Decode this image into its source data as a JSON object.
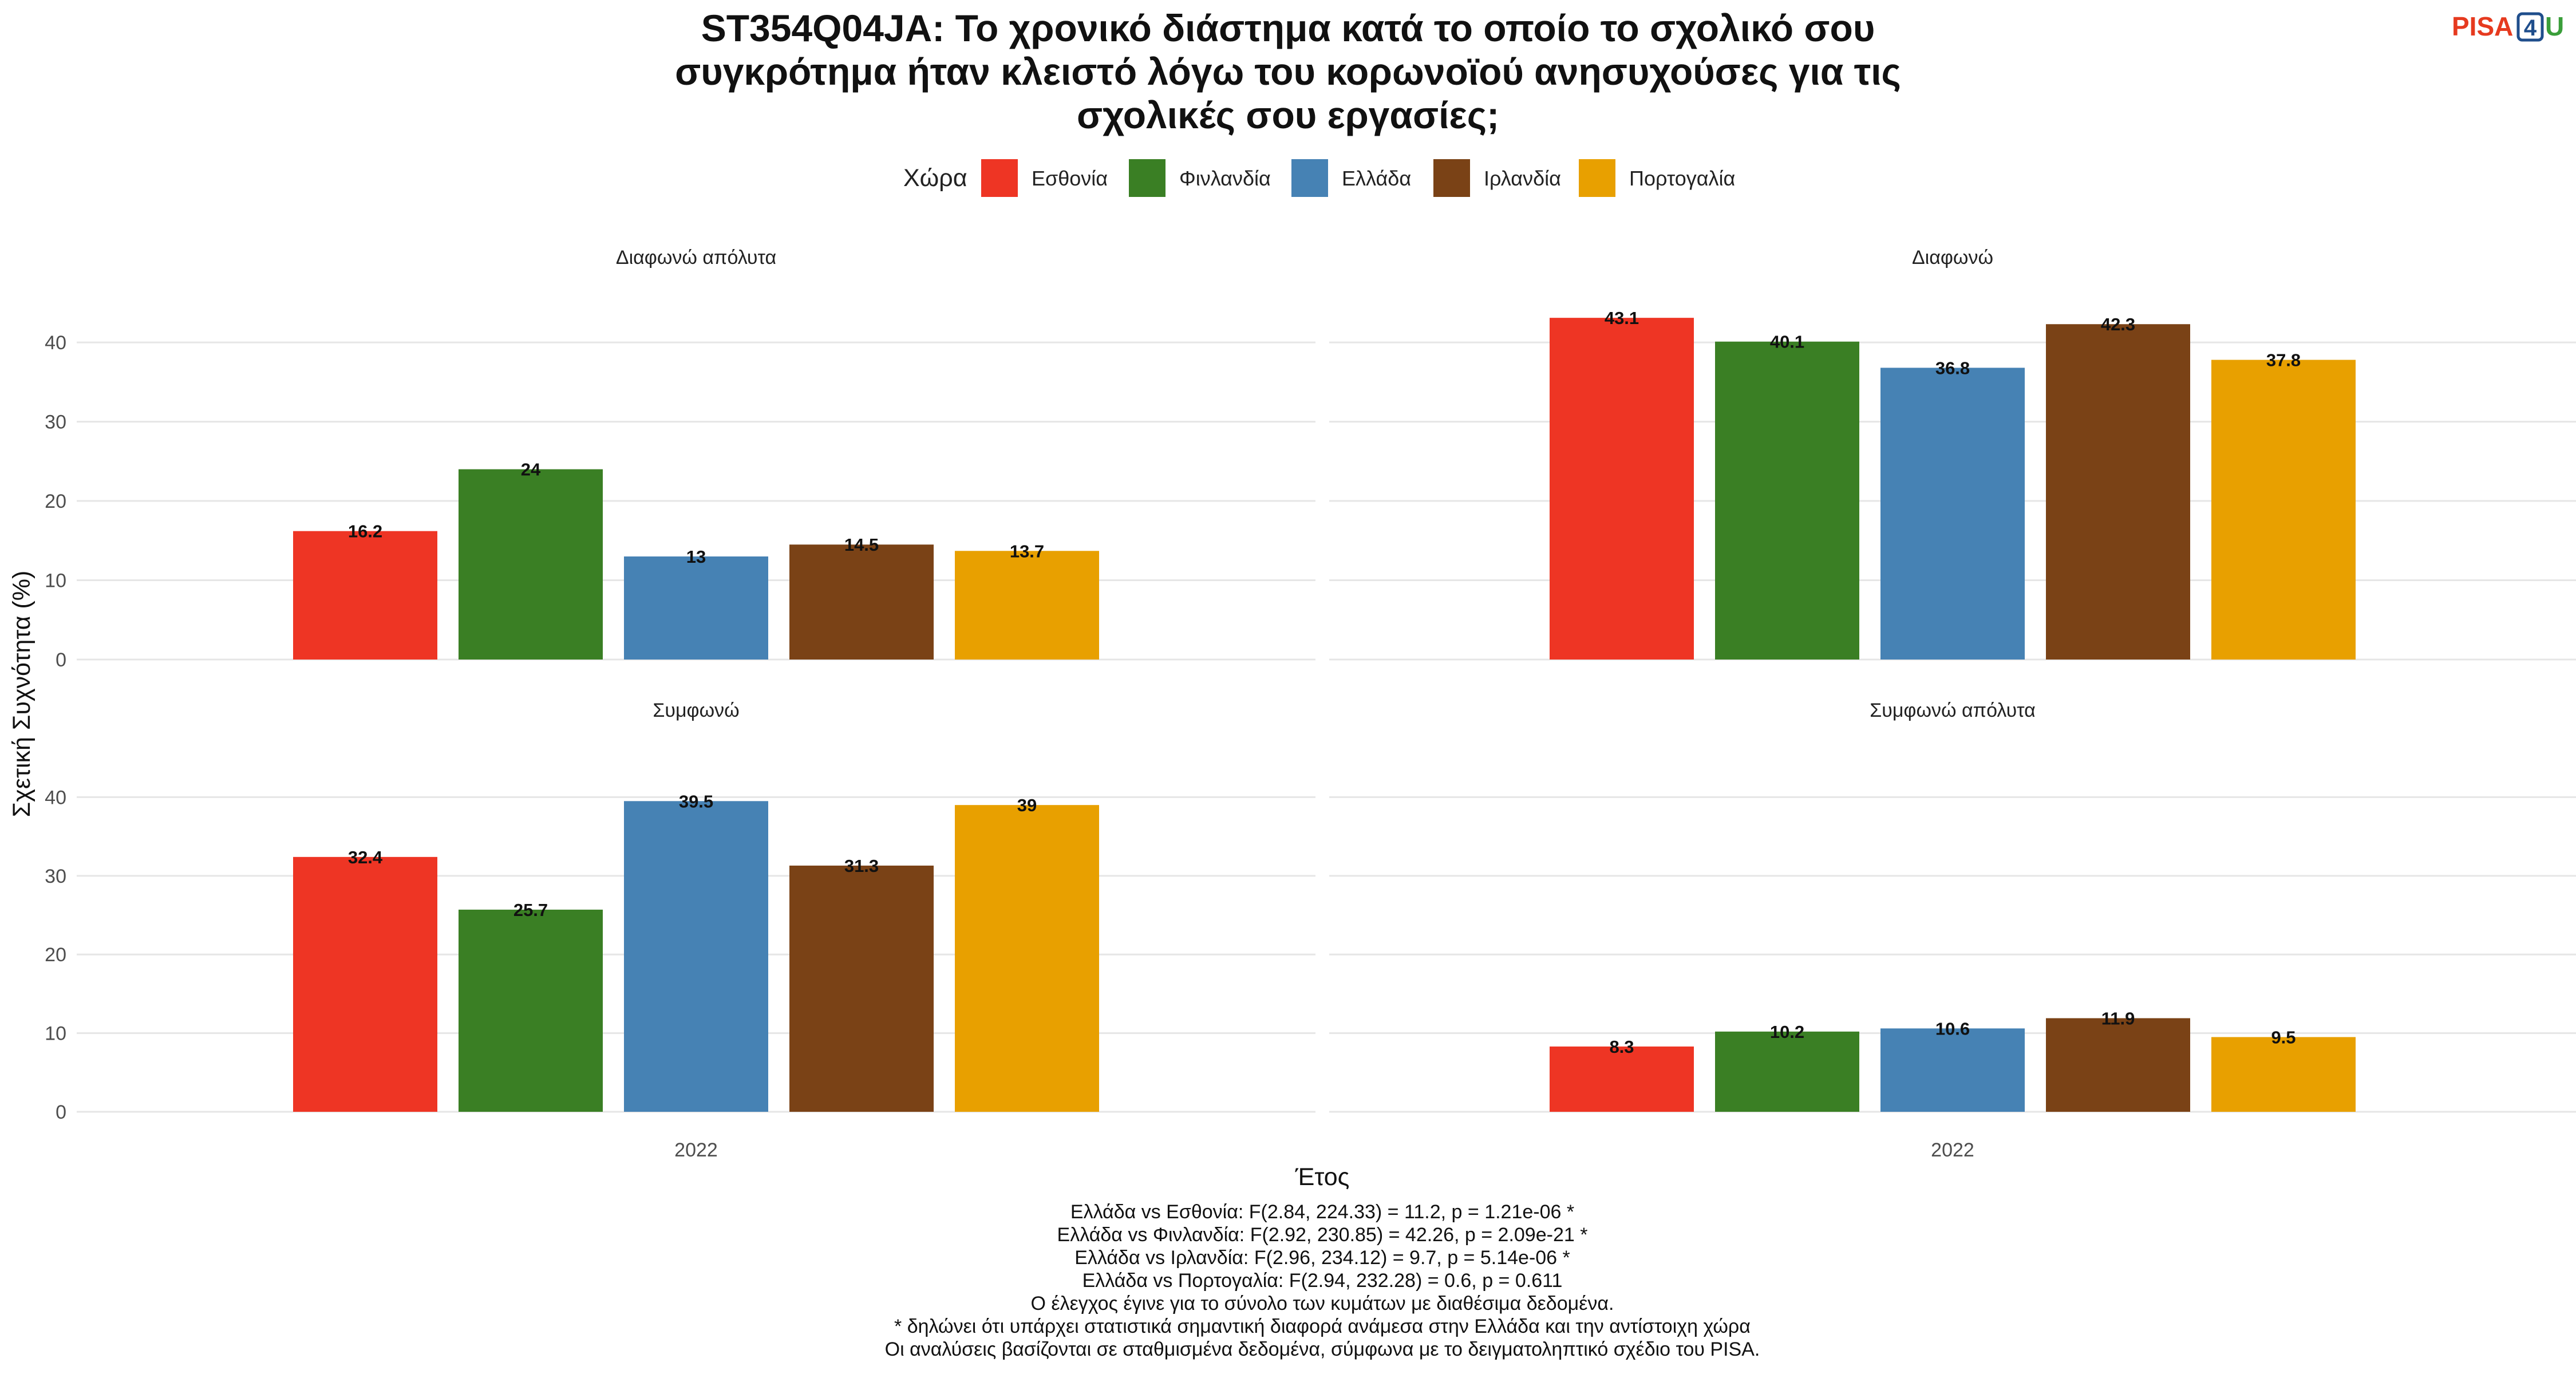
{
  "title_lines": [
    "ST354Q04JA: Το χρονικό διάστημα κατά το οποίο το σχολικό σου",
    "συγκρότημα ήταν κλειστό λόγω του κορωνοϊού ανησυχούσες για τις",
    "σχολικές σου εργασίες;"
  ],
  "logo": {
    "pisa": "PISA",
    "four": "4",
    "u": "U",
    "colors": {
      "pisa": "#e63a1f",
      "four": "#1f4e8c",
      "u": "#3a9e3a"
    }
  },
  "legend": {
    "title": "Χώρα",
    "placement": "top",
    "items": [
      {
        "label": "Εσθονία",
        "color": "#EE3524"
      },
      {
        "label": "Φινλανδία",
        "color": "#3A7F24"
      },
      {
        "label": "Ελλάδα",
        "color": "#4682B4"
      },
      {
        "label": "Ιρλανδία",
        "color": "#7A4216"
      },
      {
        "label": "Πορτογαλία",
        "color": "#E8A000"
      }
    ]
  },
  "chart_data": {
    "type": "bar",
    "ylabel": "Σχετική Συχνότητα (%)",
    "xlabel": "Έτος",
    "x_category": "2022",
    "ylim": [
      0,
      46
    ],
    "yticks": [
      0,
      10,
      20,
      30,
      40
    ],
    "grid": true,
    "facets": [
      {
        "label": "Διαφωνώ απόλυτα",
        "values": [
          16.2,
          24,
          13,
          14.5,
          13.7
        ],
        "value_labels": [
          "16.2",
          "24",
          "13",
          "14.5",
          "13.7"
        ]
      },
      {
        "label": "Διαφωνώ",
        "values": [
          43.1,
          40.1,
          36.8,
          42.3,
          37.8
        ],
        "value_labels": [
          "43.1",
          "40.1",
          "36.8",
          "42.3",
          "37.8"
        ]
      },
      {
        "label": "Συμφωνώ",
        "values": [
          32.4,
          25.7,
          39.5,
          31.3,
          39
        ],
        "value_labels": [
          "32.4",
          "25.7",
          "39.5",
          "31.3",
          "39"
        ]
      },
      {
        "label": "Συμφωνώ απόλυτα",
        "values": [
          8.3,
          10.2,
          10.6,
          11.9,
          9.5
        ],
        "value_labels": [
          "8.3",
          "10.2",
          "10.6",
          "11.9",
          "9.5"
        ]
      }
    ]
  },
  "notes": [
    "Ελλάδα vs Εσθονία: F(2.84, 224.33) = 11.2, p = 1.21e-06 *",
    "Ελλάδα vs Φινλανδία: F(2.92, 230.85) = 42.26, p = 2.09e-21 *",
    "Ελλάδα vs Ιρλανδία: F(2.96, 234.12) = 9.7, p = 5.14e-06 *",
    "Ελλάδα vs Πορτογαλία: F(2.94, 232.28) = 0.6, p = 0.611",
    "Ο έλεγχος έγινε για το σύνολο των κυμάτων με διαθέσιμα δεδομένα.",
    "* δηλώνει ότι υπάρχει στατιστικά σημαντική διαφορά ανάμεσα στην Ελλάδα και την αντίστοιχη χώρα",
    "Οι αναλύσεις βασίζονται σε σταθμισμένα δεδομένα, σύμφωνα με το δειγματοληπτικό σχέδιο του PISA."
  ]
}
